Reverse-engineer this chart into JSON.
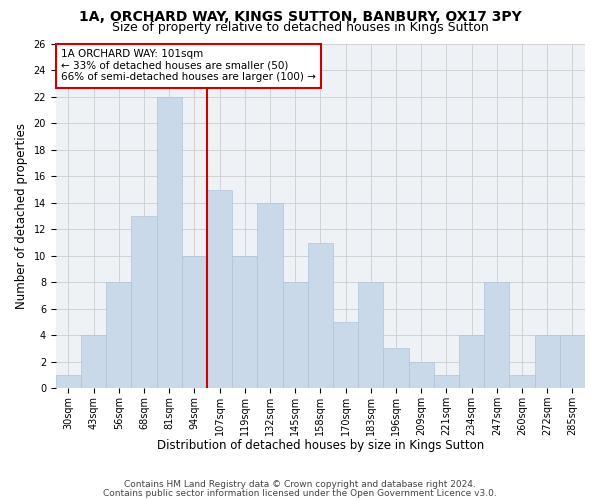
{
  "title1": "1A, ORCHARD WAY, KINGS SUTTON, BANBURY, OX17 3PY",
  "title2": "Size of property relative to detached houses in Kings Sutton",
  "xlabel": "Distribution of detached houses by size in Kings Sutton",
  "ylabel": "Number of detached properties",
  "categories": [
    "30sqm",
    "43sqm",
    "56sqm",
    "68sqm",
    "81sqm",
    "94sqm",
    "107sqm",
    "119sqm",
    "132sqm",
    "145sqm",
    "158sqm",
    "170sqm",
    "183sqm",
    "196sqm",
    "209sqm",
    "221sqm",
    "234sqm",
    "247sqm",
    "260sqm",
    "272sqm",
    "285sqm"
  ],
  "values": [
    1,
    4,
    8,
    13,
    22,
    10,
    15,
    10,
    14,
    8,
    11,
    5,
    8,
    3,
    2,
    1,
    4,
    8,
    1,
    4,
    4
  ],
  "bar_color": "#c9d9ea",
  "bar_edge_color": "#aec4d8",
  "vline_color": "#cc0000",
  "annotation_text": "1A ORCHARD WAY: 101sqm\n← 33% of detached houses are smaller (50)\n66% of semi-detached houses are larger (100) →",
  "annotation_box_color": "#ffffff",
  "annotation_box_edge": "#cc0000",
  "ylim": [
    0,
    26
  ],
  "yticks": [
    0,
    2,
    4,
    6,
    8,
    10,
    12,
    14,
    16,
    18,
    20,
    22,
    24,
    26
  ],
  "grid_color": "#cccccc",
  "bg_color": "#eef2f7",
  "footer1": "Contains HM Land Registry data © Crown copyright and database right 2024.",
  "footer2": "Contains public sector information licensed under the Open Government Licence v3.0.",
  "title_fontsize": 10,
  "subtitle_fontsize": 9,
  "tick_fontsize": 7,
  "ylabel_fontsize": 8.5,
  "xlabel_fontsize": 8.5,
  "footer_fontsize": 6.5,
  "annotation_fontsize": 7.5
}
